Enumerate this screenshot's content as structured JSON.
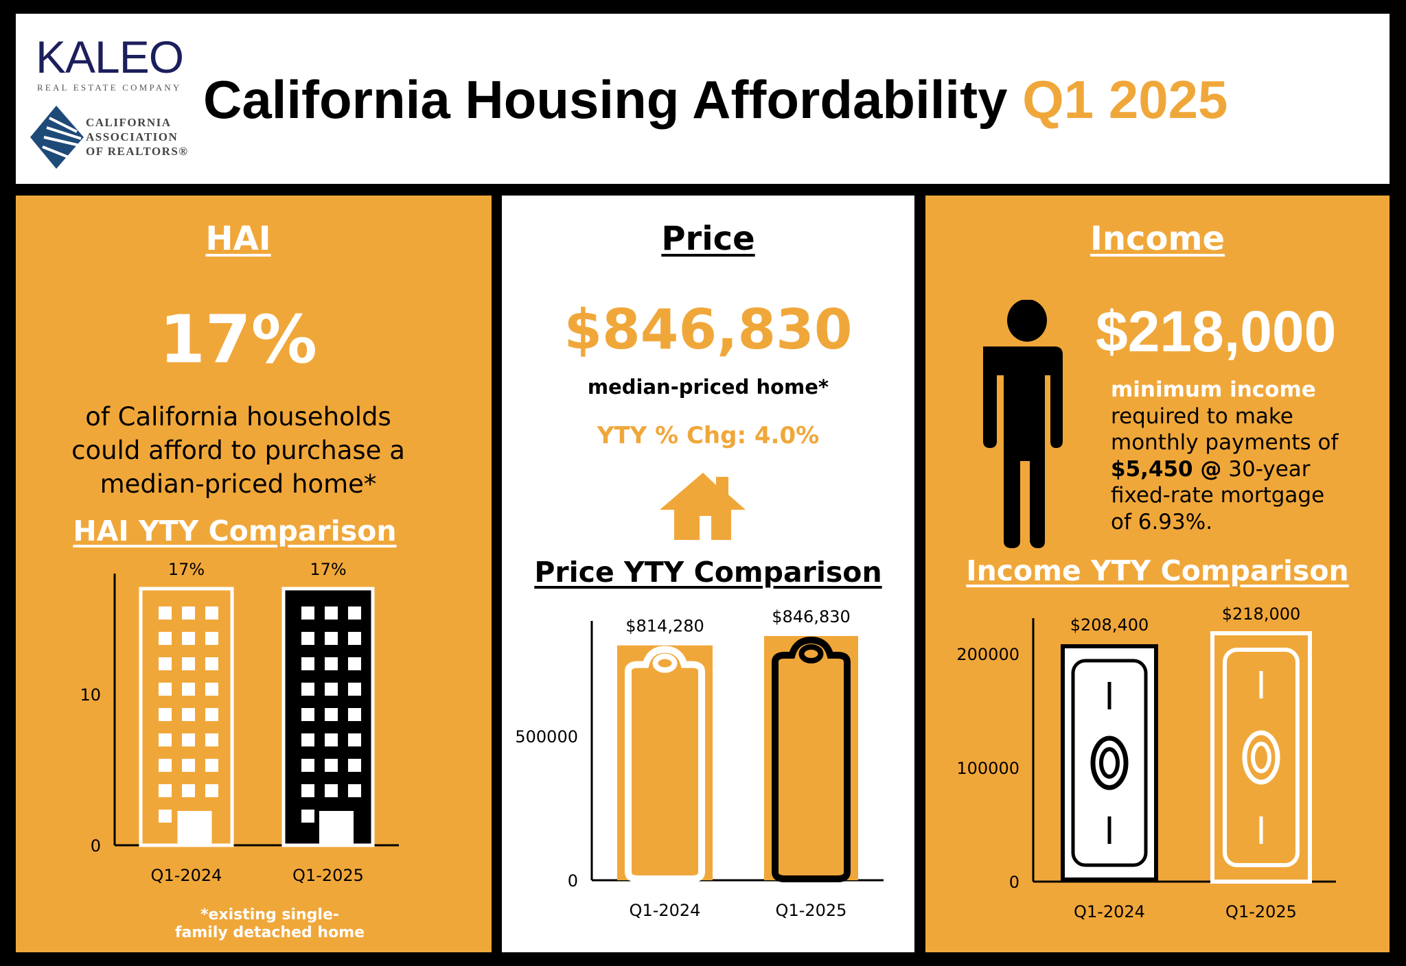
{
  "header": {
    "logo_kaleo": "KALEO",
    "logo_kaleo_sub": "REAL ESTATE COMPANY",
    "logo_car": [
      "CALIFORNIA",
      "ASSOCIATION",
      "OF REALTORS®"
    ],
    "title": "California Housing Affordability",
    "title_period": "Q1 2025"
  },
  "colors": {
    "accent": "#F0A73A",
    "dark": "#000000",
    "light": "#FFFFFF",
    "logo_navy": "#1C1F5C"
  },
  "hai": {
    "heading": "HAI",
    "value": "17%",
    "description": [
      "of California households",
      "could afford to purchase a",
      "median-priced home*"
    ],
    "chart_title": "HAI YTY Comparison",
    "footnote": [
      "*existing single-",
      "family detached home"
    ]
  },
  "price": {
    "heading": "Price",
    "value": "$846,830",
    "label": "median-priced home*",
    "yty": "YTY % Chg: 4.0%",
    "icon": "house-icon",
    "chart_title": "Price YTY Comparison"
  },
  "income": {
    "heading": "Income",
    "value": "$218,000",
    "icon": "person-icon",
    "desc_lead": "minimum income",
    "desc_lines": [
      "required to make",
      "monthly payments of"
    ],
    "payment": "$5,450 @",
    "payment_rest": " 30-year",
    "desc_tail": [
      "fixed-rate mortgage",
      "of 6.93%."
    ],
    "chart_title": "Income YTY Comparison"
  },
  "chart_data": [
    {
      "type": "bar",
      "id": "hai",
      "categories": [
        "Q1-2024",
        "Q1-2025"
      ],
      "values": [
        17,
        17
      ],
      "data_labels": [
        "17%",
        "17%"
      ],
      "yticks": [
        0,
        10
      ],
      "ylim": [
        0,
        17
      ],
      "bar_icon": "building-icon",
      "grid": false
    },
    {
      "type": "bar",
      "id": "price",
      "categories": [
        "Q1-2024",
        "Q1-2025"
      ],
      "values": [
        814280,
        846830
      ],
      "data_labels": [
        "$814,280",
        "$846,830"
      ],
      "yticks": [
        0,
        500000
      ],
      "ylim": [
        0,
        846830
      ],
      "bar_icon": "price-tag-icon",
      "grid": false
    },
    {
      "type": "bar",
      "id": "income",
      "categories": [
        "Q1-2024",
        "Q1-2025"
      ],
      "values": [
        208400,
        218000
      ],
      "data_labels": [
        "$208,400",
        "$218,000"
      ],
      "yticks": [
        0,
        100000,
        200000
      ],
      "ylim": [
        0,
        218000
      ],
      "bar_icon": "dollar-bill-icon",
      "grid": false
    }
  ]
}
